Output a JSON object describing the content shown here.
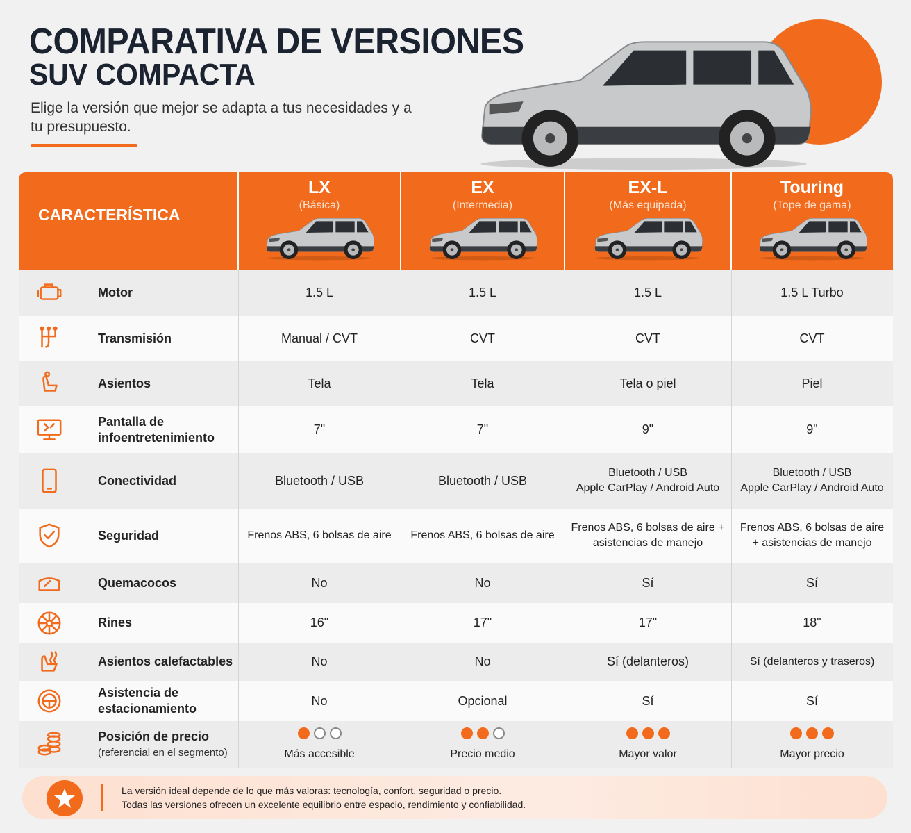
{
  "header": {
    "title_line1": "COMPARATIVA DE VERSIONES",
    "title_line2": "SUV COMPACTA",
    "subtitle": "Elige la versión que mejor se adapta a tus necesidades y a tu presupuesto."
  },
  "table": {
    "header_label": "CARACTERÍSTICA",
    "versions": [
      {
        "name": "LX",
        "tier": "(Básica)"
      },
      {
        "name": "EX",
        "tier": "(Intermedia)"
      },
      {
        "name": "EX-L",
        "tier": "(Más equipada)"
      },
      {
        "name": "Touring",
        "tier": "(Tope de gama)"
      }
    ],
    "rows": [
      {
        "feature": "Motor",
        "cells": [
          "1.5 L",
          "1.5 L",
          "1.5 L",
          "1.5 L Turbo"
        ]
      },
      {
        "feature": "Transmisión",
        "cells": [
          "Manual / CVT",
          "CVT",
          "CVT",
          "CVT"
        ]
      },
      {
        "feature": "Asientos",
        "cells": [
          "Tela",
          "Tela",
          "Tela o piel",
          "Piel"
        ]
      },
      {
        "feature": "Pantalla de infoentretenimiento",
        "cells": [
          "7\"",
          "7\"",
          "9\"",
          "9\""
        ]
      },
      {
        "feature": "Conectividad",
        "cells": [
          "Bluetooth / USB",
          "Bluetooth / USB",
          [
            "Bluetooth / USB",
            "Apple CarPlay / Android Auto"
          ],
          [
            "Bluetooth / USB",
            "Apple CarPlay / Android Auto"
          ]
        ]
      },
      {
        "feature": "Seguridad",
        "cells": [
          "Frenos ABS, 6 bolsas de aire",
          "Frenos ABS, 6 bolsas de aire",
          "Frenos ABS, 6 bolsas de aire + asistencias de manejo",
          "Frenos ABS, 6 bolsas de aire + asistencias de manejo"
        ]
      },
      {
        "feature": "Quemacocos",
        "cells": [
          "No",
          "No",
          "Sí",
          "Sí"
        ]
      },
      {
        "feature": "Rines",
        "cells": [
          "16\"",
          "17\"",
          "17\"",
          "18\""
        ]
      },
      {
        "feature": "Asientos calefactables",
        "cells": [
          "No",
          "No",
          "Sí (delanteros)",
          "Sí (delanteros y traseros)"
        ]
      },
      {
        "feature": "Asistencia de estacionamiento",
        "cells": [
          "No",
          "Opcional",
          "Sí",
          "Sí"
        ]
      }
    ],
    "price_row": {
      "feature": "Posición de precio",
      "note": "(referencial en el segmento)",
      "cells": [
        {
          "level": 1,
          "label": "Más accesible"
        },
        {
          "level": 2,
          "label": "Precio medio"
        },
        {
          "level": 3,
          "label": "Mayor valor"
        },
        {
          "level": 3,
          "label": "Mayor precio"
        }
      ]
    }
  },
  "footer": {
    "line1": "La versión ideal depende de lo que más valoras: tecnología, confort, seguridad o precio.",
    "line2": "Todas las versiones ofrecen un excelente equilibrio entre espacio, rendimiento y confiabilidad."
  }
}
